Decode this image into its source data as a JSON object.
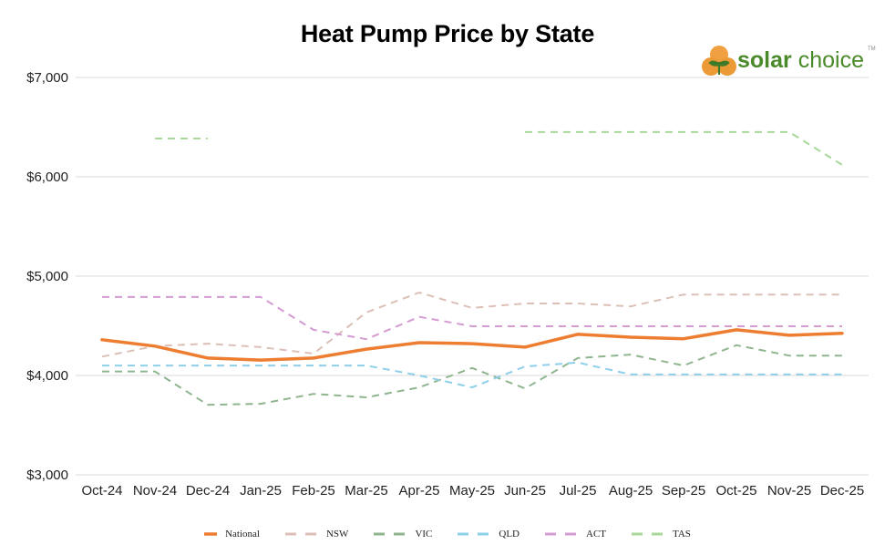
{
  "chart_data": {
    "type": "line",
    "title": "Heat Pump Price by State",
    "xlabel": "",
    "ylabel": "",
    "ylim": [
      3000,
      7000
    ],
    "yticks": [
      3000,
      4000,
      5000,
      6000,
      7000
    ],
    "ytick_labels": [
      "$3,000",
      "$4,000",
      "$5,000",
      "$6,000",
      "$7,000"
    ],
    "grid": true,
    "legend_position": "bottom",
    "categories": [
      "Oct-24",
      "Nov-24",
      "Dec-24",
      "Jan-25",
      "Feb-25",
      "Mar-25",
      "Apr-25",
      "May-25",
      "Jun-25",
      "Jul-25",
      "Aug-25",
      "Sep-25",
      "Oct-25",
      "Nov-25",
      "Dec-25"
    ],
    "series": [
      {
        "name": "National",
        "style": "solid",
        "color": "#ed7d31",
        "values": [
          4360,
          4295,
          4175,
          4155,
          4175,
          4265,
          4330,
          4320,
          4285,
          4415,
          4385,
          4370,
          4460,
          4405,
          4425
        ]
      },
      {
        "name": "NSW",
        "style": "dashed",
        "color": "#dcc0b8",
        "values": [
          4190,
          4295,
          4320,
          4285,
          4220,
          4635,
          4835,
          4680,
          4725,
          4725,
          4695,
          4815,
          4815,
          4815,
          4815
        ]
      },
      {
        "name": "VIC",
        "style": "dashed",
        "color": "#8fb58f",
        "values": [
          4040,
          4040,
          3705,
          3715,
          3815,
          3780,
          3880,
          4075,
          3870,
          4175,
          4210,
          4100,
          4305,
          4200,
          4200
        ]
      },
      {
        "name": "QLD",
        "style": "dashed",
        "color": "#8ecfea",
        "values": [
          4100,
          4100,
          4100,
          4100,
          4100,
          4100,
          4000,
          3880,
          4090,
          4130,
          4010,
          4010,
          4010,
          4010,
          4010
        ]
      },
      {
        "name": "ACT",
        "style": "dashed",
        "color": "#d59bd3",
        "values": [
          4790,
          4790,
          4790,
          4790,
          4460,
          4365,
          4590,
          4495,
          4495,
          4495,
          4495,
          4495,
          4495,
          4495,
          4495
        ]
      },
      {
        "name": "TAS",
        "style": "dashed",
        "color": "#a8d89a",
        "values": [
          null,
          6385,
          6385,
          null,
          null,
          null,
          null,
          null,
          6450,
          6450,
          6450,
          6450,
          6450,
          6450,
          6120
        ]
      }
    ]
  },
  "logo": {
    "brand_bold": "solar",
    "brand_light": " choice",
    "trademark": "TM"
  }
}
